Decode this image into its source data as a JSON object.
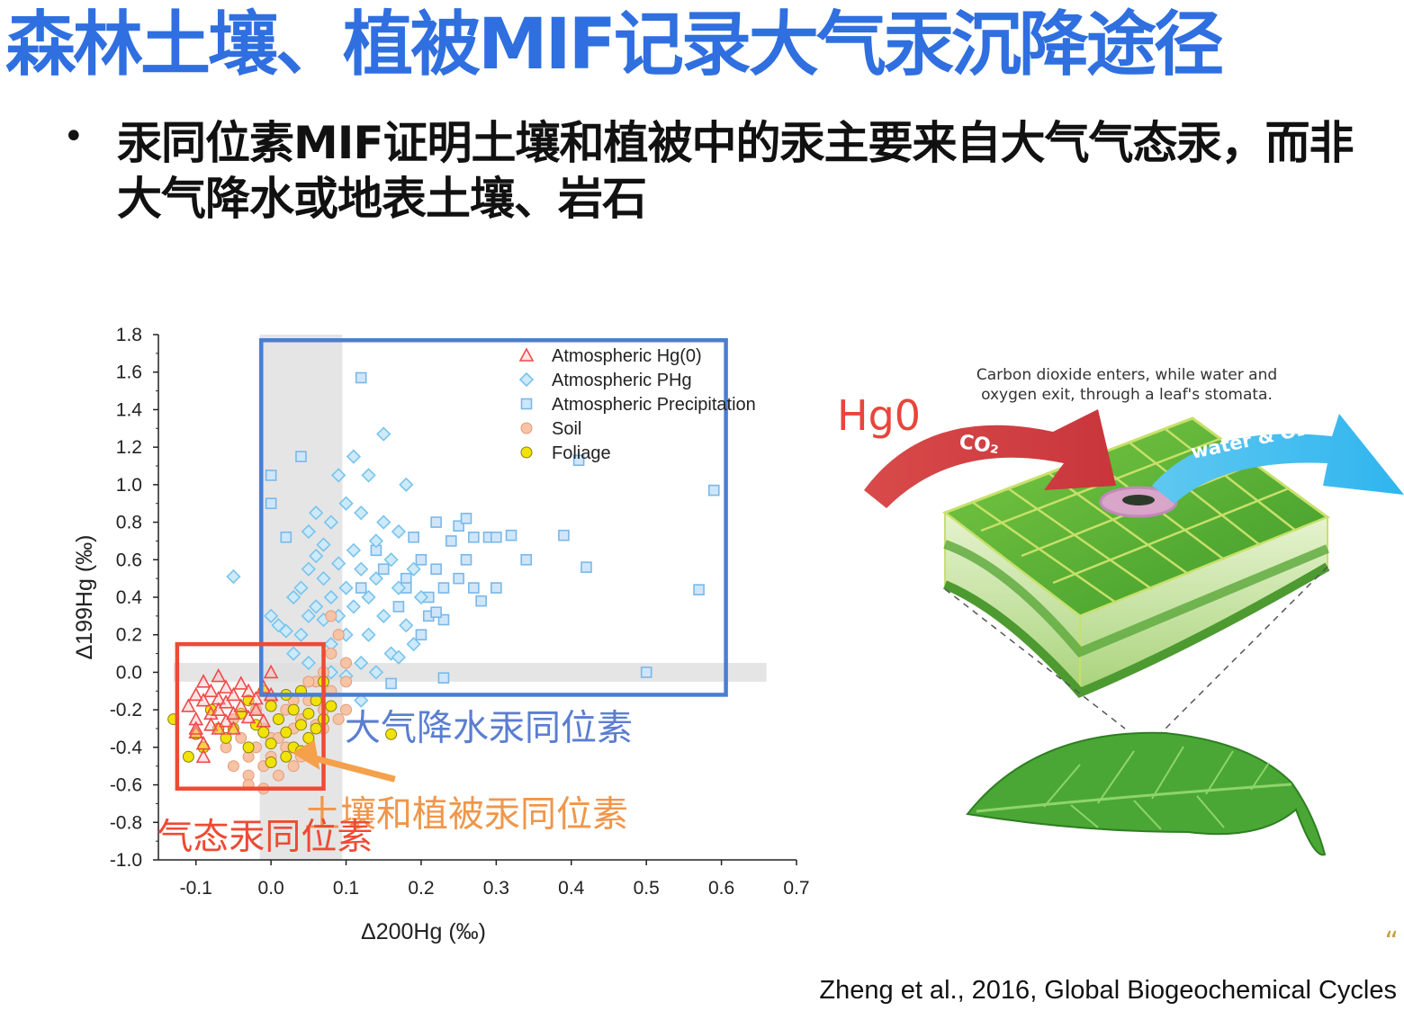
{
  "slide": {
    "title": "森林土壤、植被MIF记录大气汞沉降途径",
    "bullet": "汞同位素MIF证明土壤和植被中的汞主要来自大气气态汞，而非大气降水或地表土壤、岩石",
    "citation": "Zheng et al., 2016, Global Biogeochemical Cycles",
    "corner_mark": "“"
  },
  "chart_data": {
    "type": "scatter",
    "xlabel": "Δ200Hg (‰)",
    "ylabel": "Δ199Hg (‰)",
    "xlim": [
      -0.15,
      0.7
    ],
    "ylim": [
      -1.0,
      1.8
    ],
    "x_ticks": [
      "-0.1",
      "0.0",
      "0.1",
      "0.2",
      "0.3",
      "0.4",
      "0.5",
      "0.6",
      "0.7"
    ],
    "y_ticks": [
      "1.8",
      "1.6",
      "1.4",
      "1.2",
      "1.0",
      "0.8",
      "0.6",
      "0.4",
      "0.2",
      "0.0",
      "-0.2",
      "-0.4",
      "-0.6",
      "-0.8",
      "-1.0"
    ],
    "legend_position": "top-right",
    "series": [
      {
        "name": "Atmospheric Hg(0)",
        "marker": "triangle",
        "color": "#f04a4a",
        "points": [
          [
            -0.11,
            -0.18
          ],
          [
            -0.1,
            -0.12
          ],
          [
            -0.1,
            -0.25
          ],
          [
            -0.1,
            -0.32
          ],
          [
            -0.09,
            -0.38
          ],
          [
            -0.09,
            -0.05
          ],
          [
            -0.09,
            -0.15
          ],
          [
            -0.08,
            -0.1
          ],
          [
            -0.08,
            -0.22
          ],
          [
            -0.08,
            -0.28
          ],
          [
            -0.07,
            -0.02
          ],
          [
            -0.07,
            -0.14
          ],
          [
            -0.07,
            -0.2
          ],
          [
            -0.06,
            -0.08
          ],
          [
            -0.06,
            -0.16
          ],
          [
            -0.06,
            -0.26
          ],
          [
            -0.05,
            -0.12
          ],
          [
            -0.05,
            -0.22
          ],
          [
            -0.04,
            -0.06
          ],
          [
            -0.04,
            -0.18
          ],
          [
            -0.03,
            -0.1
          ],
          [
            -0.03,
            -0.24
          ],
          [
            -0.02,
            -0.14
          ],
          [
            -0.02,
            -0.2
          ],
          [
            -0.01,
            -0.08
          ],
          [
            -0.01,
            -0.26
          ],
          [
            0.0,
            0.0
          ],
          [
            0.0,
            -0.12
          ],
          [
            -0.09,
            -0.45
          ],
          [
            -0.1,
            -0.3
          ],
          [
            -0.07,
            -0.3
          ],
          [
            -0.05,
            -0.3
          ]
        ]
      },
      {
        "name": "Atmospheric PHg",
        "marker": "diamond",
        "color": "#79c4ec",
        "points": [
          [
            -0.05,
            0.51
          ],
          [
            0.0,
            0.3
          ],
          [
            0.01,
            0.25
          ],
          [
            0.02,
            0.22
          ],
          [
            0.03,
            0.4
          ],
          [
            0.03,
            0.1
          ],
          [
            0.04,
            0.2
          ],
          [
            0.04,
            0.45
          ],
          [
            0.05,
            0.55
          ],
          [
            0.05,
            0.3
          ],
          [
            0.05,
            0.75
          ],
          [
            0.06,
            0.62
          ],
          [
            0.06,
            0.35
          ],
          [
            0.06,
            0.85
          ],
          [
            0.07,
            0.5
          ],
          [
            0.07,
            0.28
          ],
          [
            0.07,
            0.68
          ],
          [
            0.08,
            0.4
          ],
          [
            0.08,
            0.8
          ],
          [
            0.08,
            0.15
          ],
          [
            0.09,
            0.58
          ],
          [
            0.09,
            0.3
          ],
          [
            0.09,
            1.05
          ],
          [
            0.1,
            0.45
          ],
          [
            0.1,
            0.9
          ],
          [
            0.1,
            0.2
          ],
          [
            0.11,
            0.65
          ],
          [
            0.11,
            0.35
          ],
          [
            0.11,
            1.15
          ],
          [
            0.12,
            0.55
          ],
          [
            0.12,
            0.85
          ],
          [
            0.12,
            0.05
          ],
          [
            0.12,
            -0.15
          ],
          [
            0.13,
            0.4
          ],
          [
            0.13,
            1.05
          ],
          [
            0.13,
            0.2
          ],
          [
            0.14,
            0.7
          ],
          [
            0.14,
            0.5
          ],
          [
            0.15,
            1.27
          ],
          [
            0.15,
            0.3
          ],
          [
            0.15,
            0.8
          ],
          [
            0.16,
            0.6
          ],
          [
            0.16,
            0.1
          ],
          [
            0.17,
            0.45
          ],
          [
            0.17,
            0.75
          ],
          [
            0.18,
            1.0
          ],
          [
            0.18,
            0.25
          ],
          [
            0.19,
            0.55
          ],
          [
            0.19,
            0.15
          ],
          [
            0.2,
            0.4
          ],
          [
            0.1,
            -0.02
          ],
          [
            0.14,
            0.0
          ],
          [
            0.17,
            0.08
          ],
          [
            0.08,
            0.0
          ],
          [
            0.05,
            0.05
          ]
        ]
      },
      {
        "name": "Atmospheric Precipitation",
        "marker": "square",
        "color": "#7ab8e8",
        "points": [
          [
            0.12,
            1.57
          ],
          [
            0.0,
            1.05
          ],
          [
            0.0,
            0.9
          ],
          [
            0.02,
            0.72
          ],
          [
            0.04,
            1.15
          ],
          [
            0.12,
            0.45
          ],
          [
            0.14,
            0.65
          ],
          [
            0.15,
            0.55
          ],
          [
            0.17,
            0.35
          ],
          [
            0.18,
            0.5
          ],
          [
            0.19,
            0.72
          ],
          [
            0.2,
            0.6
          ],
          [
            0.21,
            0.3
          ],
          [
            0.21,
            0.4
          ],
          [
            0.22,
            0.8
          ],
          [
            0.22,
            0.55
          ],
          [
            0.23,
            0.45
          ],
          [
            0.23,
            0.28
          ],
          [
            0.24,
            0.7
          ],
          [
            0.25,
            0.5
          ],
          [
            0.25,
            0.78
          ],
          [
            0.26,
            0.82
          ],
          [
            0.26,
            0.6
          ],
          [
            0.27,
            0.72
          ],
          [
            0.27,
            0.45
          ],
          [
            0.28,
            0.38
          ],
          [
            0.29,
            0.72
          ],
          [
            0.3,
            0.72
          ],
          [
            0.3,
            0.45
          ],
          [
            0.32,
            0.73
          ],
          [
            0.34,
            0.6
          ],
          [
            0.39,
            0.73
          ],
          [
            0.42,
            0.56
          ],
          [
            0.41,
            1.13
          ],
          [
            0.57,
            0.44
          ],
          [
            0.59,
            0.97
          ],
          [
            0.5,
            0.0
          ],
          [
            0.23,
            -0.03
          ],
          [
            0.16,
            -0.06
          ],
          [
            0.18,
            0.45
          ],
          [
            0.2,
            0.2
          ],
          [
            0.22,
            0.32
          ]
        ]
      },
      {
        "name": "Soil",
        "marker": "circle",
        "color": "#f6c4a4",
        "points": [
          [
            -0.05,
            -0.25
          ],
          [
            -0.04,
            -0.35
          ],
          [
            -0.03,
            -0.45
          ],
          [
            -0.03,
            -0.55
          ],
          [
            -0.02,
            -0.2
          ],
          [
            -0.02,
            -0.4
          ],
          [
            -0.01,
            -0.3
          ],
          [
            -0.01,
            -0.5
          ],
          [
            0.0,
            -0.15
          ],
          [
            0.0,
            -0.35
          ],
          [
            0.0,
            -0.45
          ],
          [
            0.01,
            -0.25
          ],
          [
            0.01,
            -0.55
          ],
          [
            0.02,
            -0.2
          ],
          [
            0.02,
            -0.4
          ],
          [
            0.03,
            -0.3
          ],
          [
            0.03,
            -0.5
          ],
          [
            0.04,
            -0.1
          ],
          [
            0.04,
            -0.25
          ],
          [
            0.04,
            -0.45
          ],
          [
            0.05,
            -0.35
          ],
          [
            0.05,
            -0.15
          ],
          [
            0.06,
            -0.05
          ],
          [
            0.06,
            -0.28
          ],
          [
            0.07,
            0.0
          ],
          [
            0.07,
            -0.2
          ],
          [
            0.08,
            0.1
          ],
          [
            0.08,
            -0.1
          ],
          [
            0.08,
            0.3
          ],
          [
            0.09,
            0.2
          ],
          [
            0.09,
            -0.25
          ],
          [
            0.1,
            -0.05
          ],
          [
            0.1,
            0.05
          ],
          [
            0.1,
            -0.2
          ],
          [
            -0.06,
            -0.4
          ],
          [
            -0.05,
            -0.5
          ],
          [
            -0.03,
            -0.6
          ],
          [
            -0.01,
            -0.62
          ],
          [
            0.01,
            -0.35
          ],
          [
            0.03,
            -0.15
          ],
          [
            0.05,
            -0.05
          ],
          [
            0.07,
            -0.3
          ]
        ]
      },
      {
        "name": "Foliage",
        "marker": "circle",
        "color": "#f1e20a",
        "points": [
          [
            -0.13,
            -0.25
          ],
          [
            -0.11,
            -0.45
          ],
          [
            -0.1,
            -0.33
          ],
          [
            -0.09,
            -0.4
          ],
          [
            -0.08,
            -0.2
          ],
          [
            -0.07,
            -0.3
          ],
          [
            -0.06,
            -0.35
          ],
          [
            -0.05,
            -0.3
          ],
          [
            -0.04,
            -0.22
          ],
          [
            -0.03,
            -0.15
          ],
          [
            -0.03,
            -0.4
          ],
          [
            -0.02,
            -0.28
          ],
          [
            -0.01,
            -0.32
          ],
          [
            0.0,
            -0.18
          ],
          [
            0.0,
            -0.38
          ],
          [
            0.01,
            -0.25
          ],
          [
            0.02,
            -0.12
          ],
          [
            0.02,
            -0.32
          ],
          [
            0.03,
            -0.2
          ],
          [
            0.03,
            -0.4
          ],
          [
            0.04,
            -0.28
          ],
          [
            0.04,
            -0.1
          ],
          [
            0.05,
            -0.22
          ],
          [
            0.05,
            -0.35
          ],
          [
            0.06,
            -0.15
          ],
          [
            0.06,
            -0.3
          ],
          [
            0.07,
            -0.05
          ],
          [
            0.07,
            -0.25
          ],
          [
            0.08,
            -0.18
          ],
          [
            0.16,
            -0.33
          ],
          [
            0.0,
            -0.48
          ],
          [
            -0.01,
            -0.1
          ],
          [
            0.02,
            -0.45
          ],
          [
            0.04,
            -0.42
          ]
        ]
      }
    ],
    "annotations": {
      "blue_box_label": "大气降水汞同位素",
      "orange_label": "土壤和植被汞同位素",
      "red_box_label": "气态汞同位素"
    }
  },
  "leaf_figure": {
    "caption": "Carbon dioxide enters, while water and oxygen exit, through a leaf's stomata.",
    "hg_label": "Hg0",
    "co2_label": "CO₂",
    "water_label": "water & O₂"
  }
}
